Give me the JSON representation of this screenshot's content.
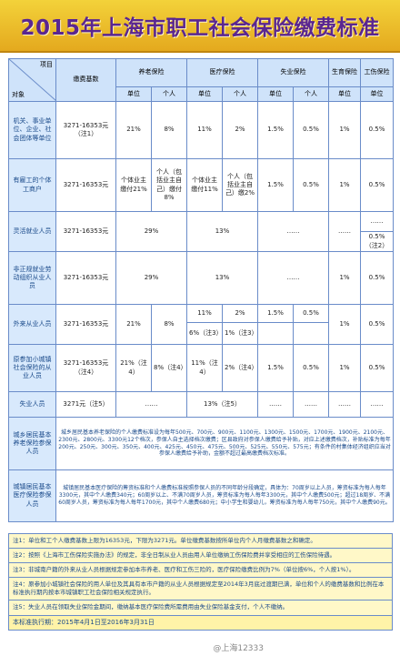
{
  "title": "2015年上海市职工社会保险缴费标准",
  "header": {
    "corner_item": "项目",
    "corner_object": "对象",
    "base": "缴费基数",
    "pension": "养老保险",
    "medical": "医疗保险",
    "unemployment": "失业保险",
    "maternity": "生育保险",
    "injury": "工伤保险",
    "unit": "单位",
    "personal": "个人"
  },
  "rows": {
    "r1": {
      "name": "机关、事业单位、企业、社会团体等单位",
      "base": "3271-16353元（注1）",
      "p_unit": "21%",
      "p_pers": "8%",
      "m_unit": "11%",
      "m_pers": "2%",
      "u_unit": "1.5%",
      "u_pers": "0.5%",
      "maternity": "1%",
      "injury": "0.5%"
    },
    "r2": {
      "name": "有雇工的个体工商户",
      "base": "3271-16353元",
      "p_unit": "个体业主缴付21%",
      "p_pers": "个人（包括业主自己）缴付8%",
      "m_unit": "个体业主缴付11%",
      "m_pers": "个人（包括业主自己）缴2%",
      "u_unit": "1.5%",
      "u_pers": "0.5%",
      "maternity": "1%",
      "injury": "0.5%"
    },
    "r3": {
      "name": "灵活就业人员",
      "base": "3271-16353元",
      "pension": "29%",
      "medical": "13%",
      "unemp": "……",
      "maternity": "……",
      "injury_a": "……",
      "injury_b": "0.5%（注2）"
    },
    "r4": {
      "name": "非正规就业劳动组织从业人员",
      "base": "3271-16353元",
      "pension": "29%",
      "medical": "13%",
      "unemp": "……",
      "maternity": "1%",
      "injury": "0.5%"
    },
    "r5": {
      "name": "外来从业人员",
      "base": "3271-16353元",
      "p_unit": "21%",
      "p_pers": "8%",
      "m_unit_a": "11%",
      "m_pers_a": "2%",
      "m_unit_b": "6%（注3）",
      "m_pers_b": "1%（注3）",
      "u_unit": "1.5%",
      "u_pers": "0.5%",
      "maternity": "1%",
      "injury": "0.5%"
    },
    "r6": {
      "name": "原参加小城镇社会保险的从业人员",
      "base": "3271-16353元（注4）",
      "p_unit": "21%（注4）",
      "p_pers": "8%（注4）",
      "m_unit": "11%（注4）",
      "m_pers": "2%（注4）",
      "u_unit": "1.5%",
      "u_pers": "0.5%",
      "maternity": "1%",
      "injury": "0.5%"
    },
    "r7": {
      "name": "失业人员",
      "base": "3271元（注5）",
      "medical": "13%（注5）",
      "dash1": "……",
      "dash2": "……",
      "dash3": "……",
      "dash4": "……",
      "dash5": "……"
    },
    "r8": {
      "name": "城乡居民基本养老保险参保人员",
      "text": "城乡居民基本养老保险的个人缴费标准设为每年500元、700元、900元、1100元、1300元、1500元、1700元、1900元、2100元、2300元、2800元、3300元12个档次，参保人自主选择档次缴费；区县政府对参保人缴费给予补贴，对应上述缴费档次，补贴标准为每年200元、250元、300元、350元、400元、425元、450元、475元、500元、525元、550元、575元；有条件的村集体经济组织应当对参保人缴费给予补助，金额不超过最高缴费档次标准。"
    },
    "r9": {
      "name": "城镇居民基本医疗保险参保人员",
      "text": "城镇居民基本医疗保险的筹资标准和个人缴费标准按照参保人员的不同年龄分段确定，具体为：70周岁以上人员，筹资标准为每人每年3300元，其中个人缴费340元；60周岁以上、不满70周岁人员，筹资标准为每人每年3300元，其中个人缴费500元；超过18周岁、不满60周岁人员，筹资标准为每人每年1700元，其中个人缴费680元；中小学生和婴幼儿，筹资标准为每人每年750元，其中个人缴费90元。"
    }
  },
  "notes": [
    "注1：单位和工个人缴费基数上限为16353元，下限为3271元。单位缴费基数按所单位内个人月缴费基数之和确定。",
    "注2：按照《上海市工伤保险实施办法》的规定，非全日制从业人员由用人单位缴纳工伤保险费并享受相应的工伤保险待遇。",
    "注3：非城南户籍的外来从业人员根据规定参加本市养老、医疗和工伤三险的，医疗保险缴费比例为7%（单位按6%，个人按1%）。",
    "注4：原参加小城镇社会保险的用人单位及其具有本市户籍的从业人员根据规定至2014年3月底过渡期已满，单位和个人的缴费基数和比例在本标准执行期内按本市城镇职工社会保险相关规定执行。",
    "注5：失业人员在领取失业保险金期间，缴纳基本医疗保险费所需费用由失业保险基金支付，个人不缴纳。",
    "本标准执行期：2015年4月1日至2016年3月31日"
  ],
  "watermark": "@上海12333"
}
